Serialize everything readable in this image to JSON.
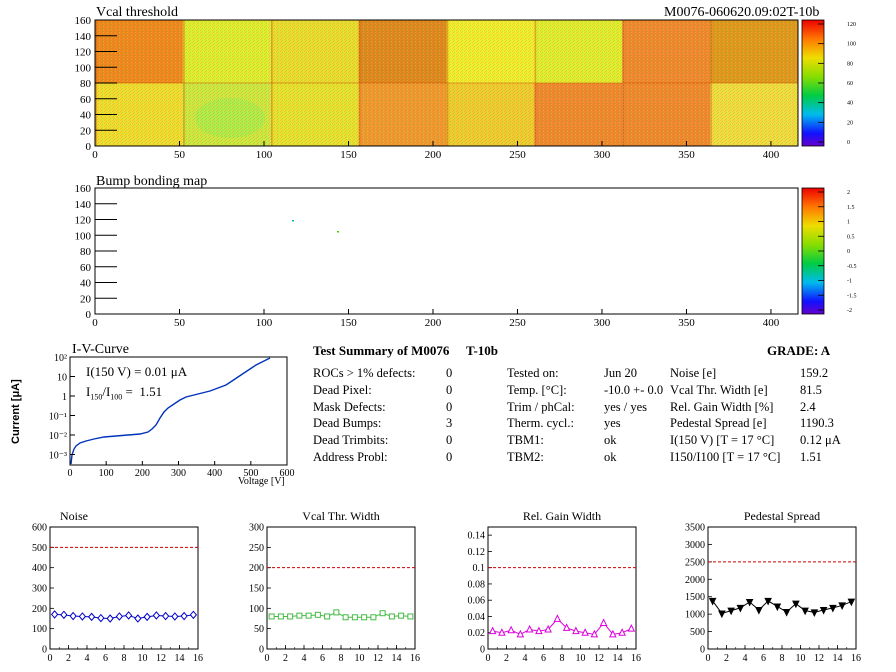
{
  "header": {
    "title": "Vcal threshold",
    "module_id": "M0076-060620.09:02T-10b"
  },
  "vcal_map": {
    "title": "Vcal threshold",
    "x_ticks": [
      "0",
      "50",
      "100",
      "150",
      "200",
      "250",
      "300",
      "350",
      "400"
    ],
    "y_ticks": [
      "0",
      "20",
      "40",
      "60",
      "80",
      "100",
      "120",
      "140",
      "160"
    ],
    "palette_ticks": [
      "120",
      "100",
      "80",
      "60",
      "40",
      "20",
      "0"
    ],
    "xlim": [
      0,
      416
    ],
    "ylim": [
      0,
      160
    ]
  },
  "bump_map": {
    "title": "Bump bonding map",
    "x_ticks": [
      "0",
      "50",
      "100",
      "150",
      "200",
      "250",
      "300",
      "350",
      "400"
    ],
    "y_ticks": [
      "0",
      "20",
      "40",
      "60",
      "80",
      "100",
      "120",
      "140",
      "160"
    ],
    "palette_ticks": [
      "2",
      "1.5",
      "1",
      "0.5",
      "0",
      "-0.5",
      "-1",
      "-1.5",
      "-2"
    ]
  },
  "iv_curve": {
    "title": "I-V-Curve",
    "ylabel": "Current [μA]",
    "xlabel": "Voltage [V]",
    "x_ticks": [
      "0",
      "100",
      "200",
      "300",
      "400",
      "500",
      "600"
    ],
    "y_ticks": [
      "10²",
      "10",
      "1",
      "10⁻¹",
      "10⁻²",
      "10⁻³"
    ],
    "annotation_i150": "I(150 V) = 0.01 μA",
    "annotation_ratio_label": "I150/I100 =",
    "annotation_ratio_sub1": "150",
    "annotation_ratio_sub2": "100",
    "annotation_ratio_value": "1.51"
  },
  "summary": {
    "title": "Test Summary of M0076",
    "tag": "T-10b",
    "grade": "GRADE:  A",
    "left_rows": [
      {
        "label": "ROCs > 1% defects:",
        "value": "0"
      },
      {
        "label": "Dead Pixel:",
        "value": "0"
      },
      {
        "label": "Mask Defects:",
        "value": "0"
      },
      {
        "label": "Dead Bumps:",
        "value": "3"
      },
      {
        "label": "Dead Trimbits:",
        "value": "0"
      },
      {
        "label": "Address Probl:",
        "value": "0"
      }
    ],
    "mid_rows": [
      {
        "label": "Tested on:",
        "value": "Jun 20"
      },
      {
        "label": "Temp. [°C]:",
        "value": "-10.0 +- 0.0"
      },
      {
        "label": "Trim / phCal:",
        "value": "yes / yes"
      },
      {
        "label": "Therm. cycl.:",
        "value": "yes"
      },
      {
        "label": "TBM1:",
        "value": "ok"
      },
      {
        "label": "TBM2:",
        "value": "ok"
      }
    ],
    "right_rows": [
      {
        "label": "Noise [e]",
        "value": "159.2"
      },
      {
        "label": "Vcal Thr. Width [e]",
        "value": "81.5"
      },
      {
        "label": "Rel. Gain Width [%]",
        "value": "2.4"
      },
      {
        "label": "Pedestal Spread [e]",
        "value": "1190.3"
      },
      {
        "label": "I(150 V) [T = 17 °C]",
        "value": "0.12 μA"
      },
      {
        "label": "I150/I100  [T = 17 °C]",
        "value": "1.51"
      }
    ]
  },
  "chart_data": [
    {
      "type": "line",
      "title": "Noise",
      "color": "#0000cc",
      "marker": "diamond",
      "x": [
        0,
        1,
        2,
        3,
        4,
        5,
        6,
        7,
        8,
        9,
        10,
        11,
        12,
        13,
        14,
        15
      ],
      "values": [
        170,
        168,
        162,
        160,
        158,
        152,
        150,
        160,
        165,
        150,
        158,
        165,
        162,
        160,
        162,
        168
      ],
      "xlim": [
        0,
        16
      ],
      "ylim": [
        0,
        600
      ],
      "threshold": 500,
      "x_ticks": [
        "0",
        "2",
        "4",
        "6",
        "8",
        "10",
        "12",
        "14",
        "16"
      ],
      "y_ticks": [
        "0",
        "100",
        "200",
        "300",
        "400",
        "500",
        "600"
      ]
    },
    {
      "type": "line",
      "title": "Vcal Thr. Width",
      "color": "#44bb44",
      "marker": "square",
      "x": [
        0,
        1,
        2,
        3,
        4,
        5,
        6,
        7,
        8,
        9,
        10,
        11,
        12,
        13,
        14,
        15
      ],
      "values": [
        80,
        80,
        80,
        82,
        82,
        84,
        80,
        90,
        78,
        78,
        78,
        78,
        88,
        80,
        82,
        80
      ],
      "xlim": [
        0,
        16
      ],
      "ylim": [
        0,
        300
      ],
      "threshold": 200,
      "x_ticks": [
        "0",
        "2",
        "4",
        "6",
        "8",
        "10",
        "12",
        "14",
        "16"
      ],
      "y_ticks": [
        "0",
        "50",
        "100",
        "150",
        "200",
        "250",
        "300"
      ]
    },
    {
      "type": "line",
      "title": "Rel. Gain Width",
      "color": "#dd00dd",
      "marker": "triangle",
      "x": [
        0,
        1,
        2,
        3,
        4,
        5,
        6,
        7,
        8,
        9,
        10,
        11,
        12,
        13,
        14,
        15
      ],
      "values": [
        0.022,
        0.02,
        0.023,
        0.018,
        0.024,
        0.022,
        0.024,
        0.037,
        0.026,
        0.022,
        0.02,
        0.018,
        0.032,
        0.018,
        0.02,
        0.025
      ],
      "xlim": [
        0,
        16
      ],
      "ylim": [
        0,
        0.15
      ],
      "threshold": 0.1,
      "x_ticks": [
        "0",
        "2",
        "4",
        "6",
        "8",
        "10",
        "12",
        "14",
        "16"
      ],
      "y_ticks": [
        "0",
        "0.02",
        "0.04",
        "0.06",
        "0.08",
        "0.1",
        "0.12",
        "0.14"
      ]
    },
    {
      "type": "line",
      "title": "Pedestal Spread",
      "color": "#000000",
      "marker": "triangle-down",
      "x": [
        0,
        1,
        2,
        3,
        4,
        5,
        6,
        7,
        8,
        9,
        10,
        11,
        12,
        13,
        14,
        15
      ],
      "values": [
        1380,
        1020,
        1100,
        1180,
        1350,
        1120,
        1380,
        1220,
        1060,
        1300,
        1100,
        1050,
        1120,
        1180,
        1250,
        1360
      ],
      "xlim": [
        0,
        16
      ],
      "ylim": [
        0,
        3500
      ],
      "threshold": 2500,
      "x_ticks": [
        "0",
        "2",
        "4",
        "6",
        "8",
        "10",
        "12",
        "14",
        "16"
      ],
      "y_ticks": [
        "0",
        "500",
        "1000",
        "1500",
        "2000",
        "2500",
        "3000",
        "3500"
      ]
    }
  ]
}
